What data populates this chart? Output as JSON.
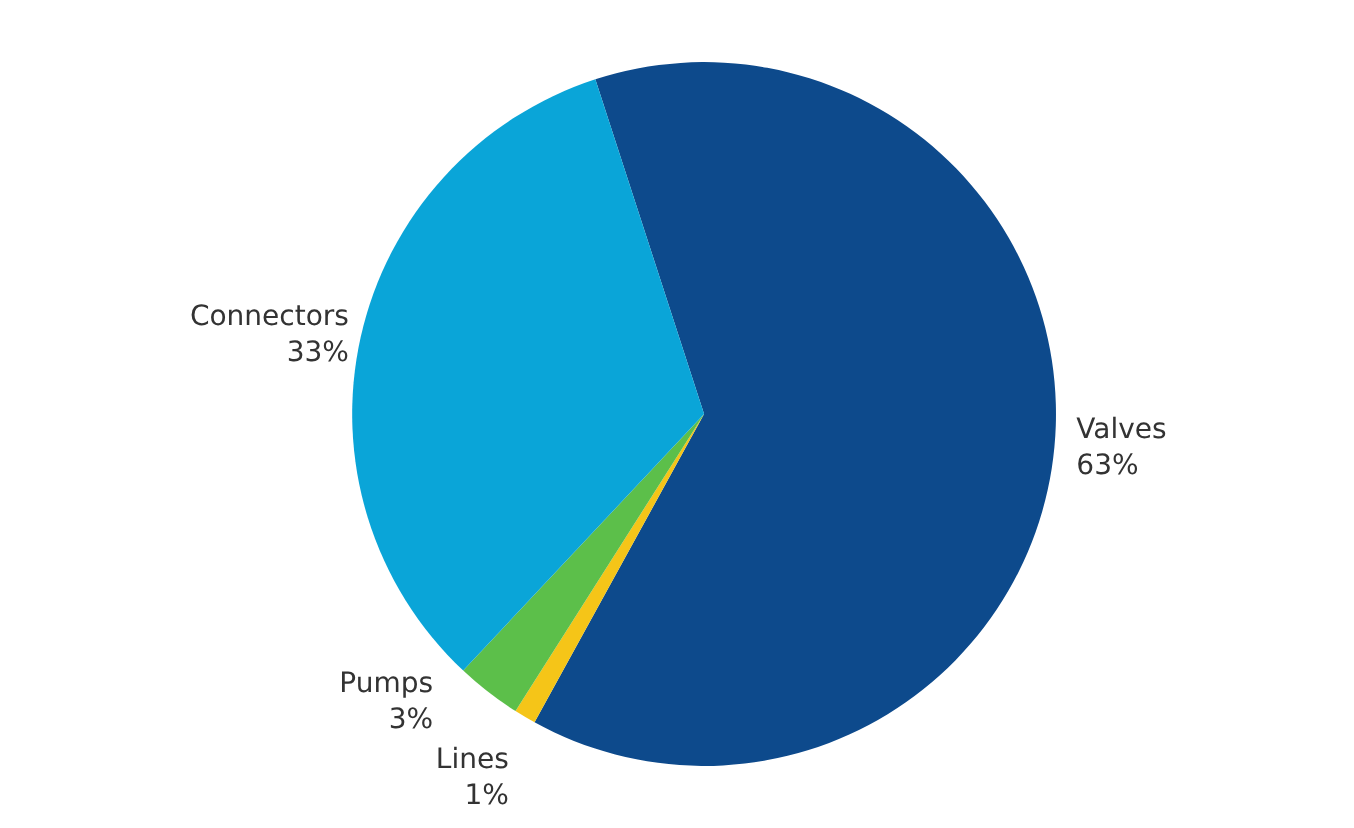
{
  "chart_data": {
    "type": "pie",
    "categories": [
      "Valves",
      "Lines",
      "Pumps",
      "Connectors"
    ],
    "values": [
      63,
      1,
      3,
      33
    ],
    "colors": [
      "#0d4a8c",
      "#f5c518",
      "#5cbf4a",
      "#0aa5d8"
    ],
    "value_labels": [
      "63%",
      "1%",
      "3%",
      "33%"
    ]
  }
}
